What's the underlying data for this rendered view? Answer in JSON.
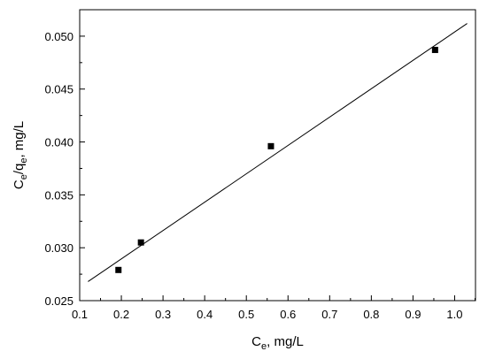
{
  "chart_data": {
    "type": "scatter",
    "title": "",
    "xlabel": {
      "main": "C",
      "sub": "e",
      "rest": ", mg/L"
    },
    "ylabel": {
      "p1": "C",
      "s1": "e",
      "p2": "/q",
      "s2": "e",
      "p3": ", mg/L"
    },
    "xlim": [
      0.1,
      1.05
    ],
    "ylim": [
      0.025,
      0.0525
    ],
    "x_ticks": [
      "0.1",
      "0.2",
      "0.3",
      "0.4",
      "0.5",
      "0.6",
      "0.7",
      "0.8",
      "0.9",
      "1.0"
    ],
    "y_ticks": [
      "0.025",
      "0.030",
      "0.035",
      "0.040",
      "0.045",
      "0.050"
    ],
    "series": [
      {
        "marker": "square",
        "color": "#000000",
        "x": [
          0.193,
          0.247,
          0.559,
          0.953
        ],
        "y": [
          0.0279,
          0.0305,
          0.0396,
          0.0487
        ]
      }
    ],
    "fit_line": {
      "type": "linear",
      "color": "#000000",
      "x": [
        0.12,
        1.03
      ],
      "y": [
        0.0268,
        0.0512
      ]
    },
    "grid": false,
    "legend": "none"
  }
}
